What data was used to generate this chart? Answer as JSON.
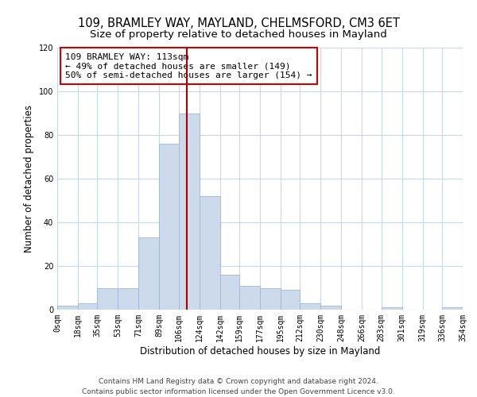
{
  "title": "109, BRAMLEY WAY, MAYLAND, CHELMSFORD, CM3 6ET",
  "subtitle": "Size of property relative to detached houses in Mayland",
  "xlabel": "Distribution of detached houses by size in Mayland",
  "ylabel": "Number of detached properties",
  "bar_color": "#cddaeb",
  "bar_edge_color": "#9db8d4",
  "vline_x": 113,
  "vline_color": "#aa0000",
  "bin_edges": [
    0,
    18,
    35,
    53,
    71,
    89,
    106,
    124,
    142,
    159,
    177,
    195,
    212,
    230,
    248,
    266,
    283,
    301,
    319,
    336,
    354
  ],
  "bin_labels": [
    "0sqm",
    "18sqm",
    "35sqm",
    "53sqm",
    "71sqm",
    "89sqm",
    "106sqm",
    "124sqm",
    "142sqm",
    "159sqm",
    "177sqm",
    "195sqm",
    "212sqm",
    "230sqm",
    "248sqm",
    "266sqm",
    "283sqm",
    "301sqm",
    "319sqm",
    "336sqm",
    "354sqm"
  ],
  "counts": [
    2,
    3,
    10,
    10,
    33,
    76,
    90,
    52,
    16,
    11,
    10,
    9,
    3,
    2,
    0,
    0,
    1,
    0,
    0,
    1
  ],
  "annotation_text": "109 BRAMLEY WAY: 113sqm\n← 49% of detached houses are smaller (149)\n50% of semi-detached houses are larger (154) →",
  "annotation_box_color": "#ffffff",
  "annotation_box_edge_color": "#cc0000",
  "ylim": [
    0,
    120
  ],
  "yticks": [
    0,
    20,
    40,
    60,
    80,
    100,
    120
  ],
  "footer_line1": "Contains HM Land Registry data © Crown copyright and database right 2024.",
  "footer_line2": "Contains public sector information licensed under the Open Government Licence v3.0.",
  "bg_color": "#ffffff",
  "grid_color": "#c8d8e8",
  "title_fontsize": 10.5,
  "subtitle_fontsize": 9.5,
  "axis_label_fontsize": 8.5,
  "tick_fontsize": 7,
  "footer_fontsize": 6.5,
  "annot_fontsize": 8
}
